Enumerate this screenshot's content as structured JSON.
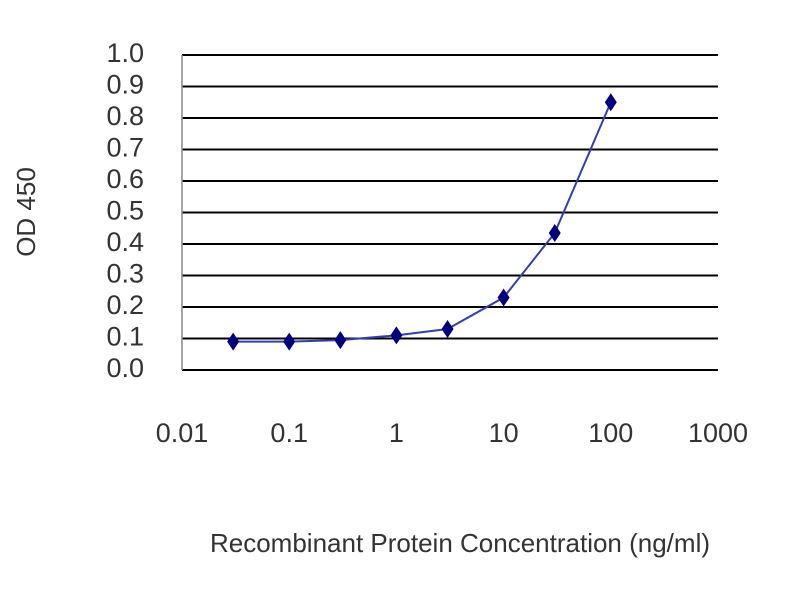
{
  "chart_data": {
    "type": "line",
    "x_label": "Recombinant Protein Concentration (ng/ml)",
    "y_label": "OD 450",
    "x": [
      0.03,
      0.1,
      0.3,
      1,
      3,
      10,
      30,
      100
    ],
    "series": [
      {
        "color": "#00007f",
        "values": [
          0.09,
          0.09,
          0.095,
          0.11,
          0.13,
          0.23,
          0.435,
          0.85
        ]
      }
    ],
    "xlim": [
      0.01,
      1000
    ],
    "xticks": [
      0.01,
      0.1,
      1,
      10,
      100,
      1000
    ],
    "xscale": "log",
    "ylim": [
      0,
      1
    ],
    "yticks": [
      {
        "value": 0,
        "label": "0.0"
      },
      0.1,
      0.2,
      0.3,
      0.4,
      0.5,
      0.6,
      0.7,
      0.8,
      0.9,
      {
        "value": 1,
        "label": "1.0"
      }
    ],
    "grid": true
  }
}
